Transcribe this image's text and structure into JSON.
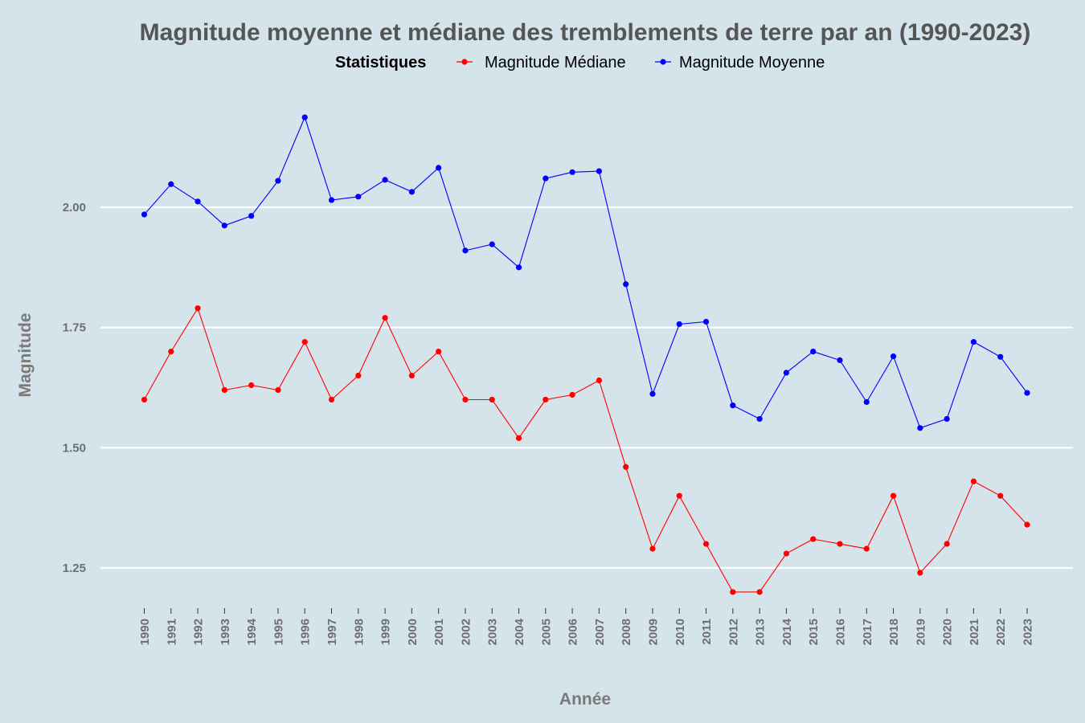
{
  "chart_data": {
    "type": "line",
    "title": "Magnitude moyenne et médiane des tremblements de terre par an (1990-2023)",
    "xlabel": "Année",
    "ylabel": "Magnitude",
    "legend_title": "Statistiques",
    "legend_position": "top",
    "ylim": [
      1.17,
      2.3
    ],
    "y_ticks": [
      "1.25",
      "1.50",
      "1.75",
      "2.00"
    ],
    "grid": "horizontal major lines",
    "background_color": "#d5e3eb",
    "categories": [
      "1990",
      "1991",
      "1992",
      "1993",
      "1994",
      "1995",
      "1996",
      "1997",
      "1998",
      "1999",
      "2000",
      "2001",
      "2002",
      "2003",
      "2004",
      "2005",
      "2006",
      "2007",
      "2008",
      "2009",
      "2010",
      "2011",
      "2012",
      "2013",
      "2014",
      "2015",
      "2016",
      "2017",
      "2018",
      "2019",
      "2020",
      "2021",
      "2022",
      "2023"
    ],
    "series": [
      {
        "name": "Magnitude Médiane",
        "color": "#ff0000",
        "values": [
          1.6,
          1.7,
          1.79,
          1.62,
          1.63,
          1.62,
          1.72,
          1.6,
          1.65,
          1.77,
          1.65,
          1.7,
          1.6,
          1.6,
          1.52,
          1.6,
          1.61,
          1.64,
          1.46,
          1.29,
          1.4,
          1.3,
          1.2,
          1.2,
          1.28,
          1.31,
          1.3,
          1.29,
          1.4,
          1.24,
          1.3,
          1.43,
          1.4,
          1.34
        ]
      },
      {
        "name": "Magnitude Moyenne",
        "color": "#0000ff",
        "values": [
          1.985,
          2.048,
          2.012,
          1.962,
          1.982,
          2.055,
          2.187,
          2.015,
          2.022,
          2.057,
          2.032,
          2.082,
          1.91,
          1.923,
          1.875,
          2.06,
          2.073,
          2.075,
          1.84,
          1.612,
          1.757,
          1.762,
          1.588,
          1.56,
          1.656,
          1.7,
          1.682,
          1.595,
          1.69,
          1.541,
          1.56,
          1.72,
          1.689,
          1.614
        ]
      }
    ]
  }
}
